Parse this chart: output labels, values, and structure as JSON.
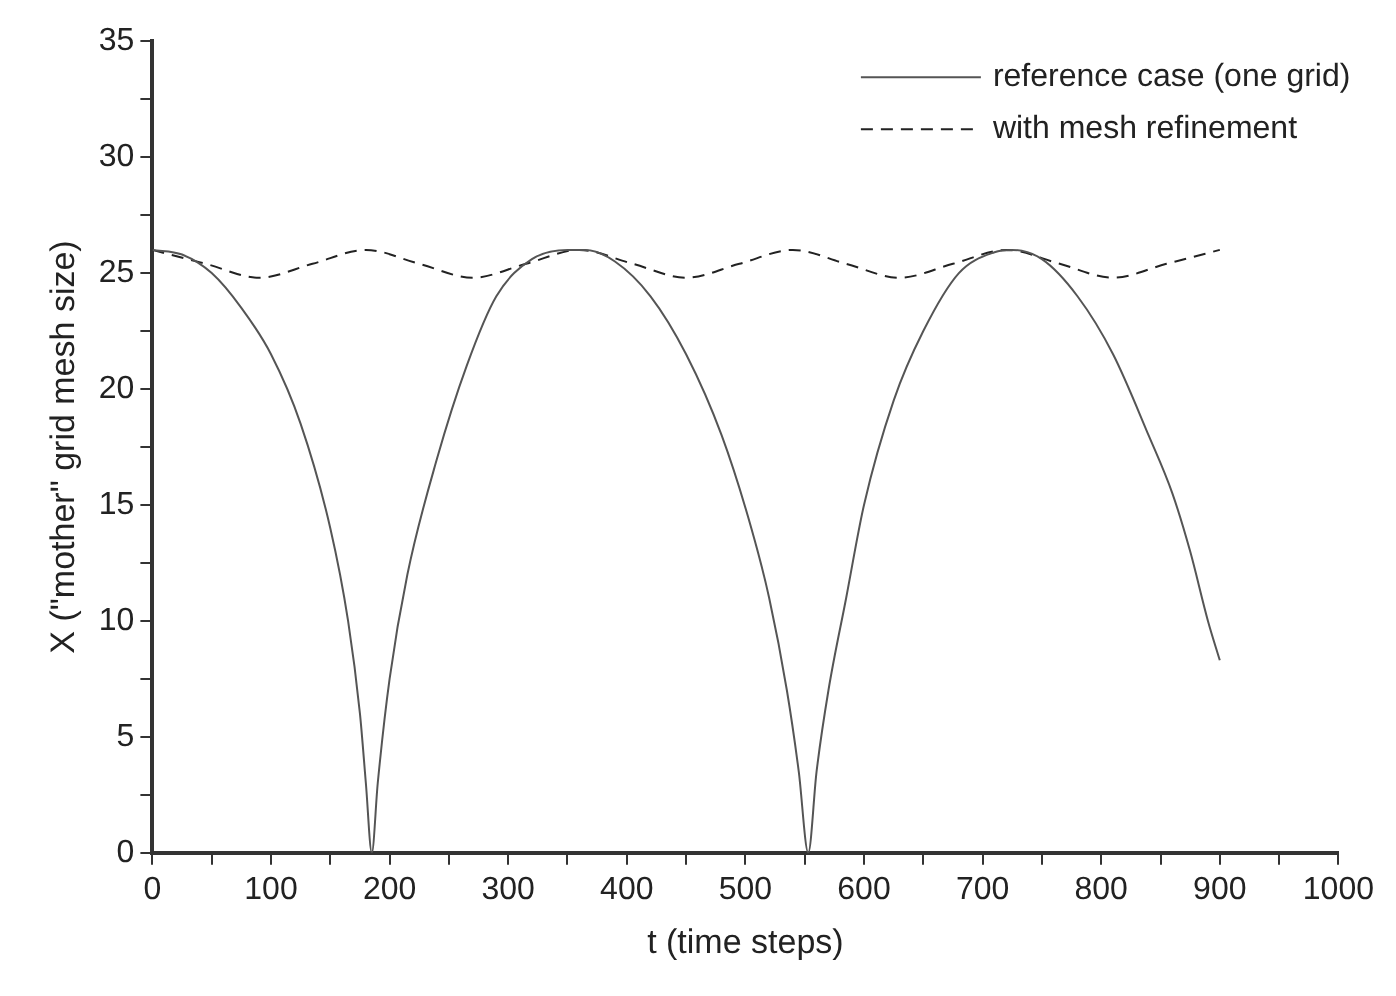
{
  "chart_data": {
    "type": "line",
    "xlabel": "t (time steps)",
    "ylabel": "X (\"mother\" grid mesh size)",
    "xlim": [
      0,
      1000
    ],
    "xticks": [
      0,
      {
        "value": 50,
        "label": null
      },
      100,
      {
        "value": 150,
        "label": null
      },
      200,
      {
        "value": 250,
        "label": null
      },
      300,
      {
        "value": 350,
        "label": null
      },
      400,
      {
        "value": 450,
        "label": null
      },
      500,
      {
        "value": 550,
        "label": null
      },
      600,
      {
        "value": 650,
        "label": null
      },
      700,
      {
        "value": 750,
        "label": null
      },
      800,
      {
        "value": 850,
        "label": null
      },
      900,
      {
        "value": 950,
        "label": null
      },
      1000
    ],
    "ylim": [
      0,
      35
    ],
    "yticks": [
      0,
      {
        "value": 2.5,
        "label": null
      },
      5,
      {
        "value": 7.5,
        "label": null
      },
      10,
      {
        "value": 12.5,
        "label": null
      },
      15,
      {
        "value": 17.5,
        "label": null
      },
      20,
      {
        "value": 22.5,
        "label": null
      },
      25,
      {
        "value": 27.5,
        "label": null
      },
      30,
      {
        "value": 32.5,
        "label": null
      },
      35
    ],
    "grid": false,
    "legend": "top right",
    "marker": "none",
    "series": [
      {
        "name": "reference case (one grid)",
        "color": "#555555",
        "line_style": "solid",
        "x": [
          0,
          25,
          50,
          75,
          100,
          125,
          150,
          165,
          175,
          180,
          185,
          190,
          200,
          215,
          240,
          265,
          290,
          320,
          350,
          365,
          390,
          420,
          450,
          480,
          505,
          520,
          535,
          545,
          553,
          560,
          570,
          585,
          600,
          625,
          650,
          680,
          710,
          725,
          750,
          780,
          810,
          840,
          860,
          875,
          890,
          900
        ],
        "values": [
          26,
          25.8,
          25,
          23.5,
          21.5,
          18.5,
          14,
          10,
          6,
          3,
          0,
          3,
          7.5,
          12,
          17,
          21,
          24,
          25.6,
          26,
          26,
          25.5,
          24,
          21.5,
          18,
          14,
          11,
          7,
          3.5,
          0,
          3.5,
          7,
          11,
          15,
          19.5,
          22.5,
          25,
          25.9,
          26,
          25.6,
          24,
          21.5,
          18,
          15.5,
          13,
          10,
          8.3
        ]
      },
      {
        "name": "with mesh refinement",
        "color": "#222222",
        "line_style": "dashed",
        "x": [
          0,
          45,
          90,
          135,
          180,
          225,
          270,
          315,
          360,
          405,
          450,
          495,
          540,
          585,
          630,
          675,
          720,
          765,
          810,
          855,
          900
        ],
        "values": [
          26,
          25.4,
          24.8,
          25.4,
          26,
          25.4,
          24.8,
          25.4,
          26,
          25.4,
          24.8,
          25.4,
          26,
          25.4,
          24.8,
          25.4,
          26,
          25.4,
          24.8,
          25.4,
          26
        ]
      }
    ]
  }
}
